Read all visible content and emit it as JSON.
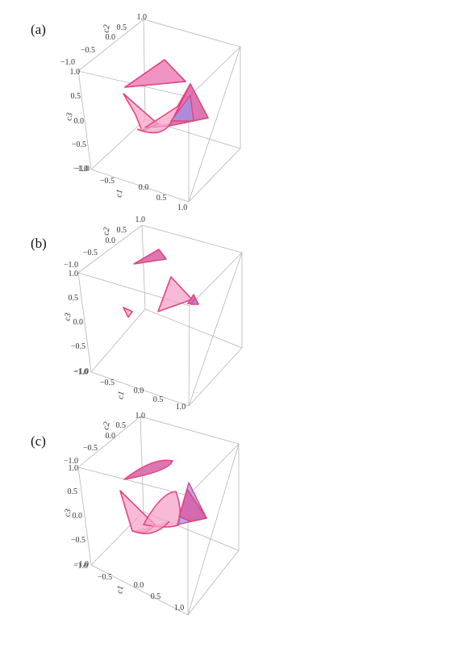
{
  "figure": {
    "panels": [
      {
        "label": "(a)",
        "c1_ticks": [
          "−1.0",
          "−0.5",
          "0.0",
          "0.5",
          "1.0"
        ],
        "c2_ticks": [
          "−1.0",
          "−0.5",
          "0.0",
          "0.5",
          "1.0"
        ],
        "c3_ticks": [
          "1.0",
          "0.5",
          "0.0",
          "−0.5",
          "−1.0"
        ],
        "c1_name": "c1",
        "c2_name": "c2",
        "c3_name": "c3"
      },
      {
        "label": "(b)",
        "c1_ticks": [
          "−1.0",
          "−0.5",
          "0.0",
          "0.5",
          "1.0"
        ],
        "c2_ticks": [
          "−1.0",
          "−0.5",
          "0.0",
          "0.5",
          "1.0"
        ],
        "c3_ticks": [
          "1.0",
          "0.5",
          "0.0",
          "−0.5",
          "−1.0"
        ],
        "c1_name": "c1",
        "c2_name": "c2",
        "c3_name": "c3"
      },
      {
        "label": "(c)",
        "c1_ticks": [
          "−1.0",
          "−0.5",
          "0.0",
          "0.5",
          "1.0"
        ],
        "c2_ticks": [
          "−1.0",
          "−0.5",
          "0.0",
          "0.5",
          "1.0"
        ],
        "c3_ticks": [
          "1.0",
          "0.5",
          "0.0",
          "−0.5",
          "−1.0"
        ],
        "c1_name": "c1",
        "c2_name": "c2",
        "c3_name": "c3"
      }
    ],
    "colors": {
      "surface_fill": "#f5a0c8",
      "surface_edge": "#e0457f",
      "surface_dark": "#d75fa6",
      "surface_blue": "#9d93e8",
      "box": "#b5b5b5"
    }
  }
}
